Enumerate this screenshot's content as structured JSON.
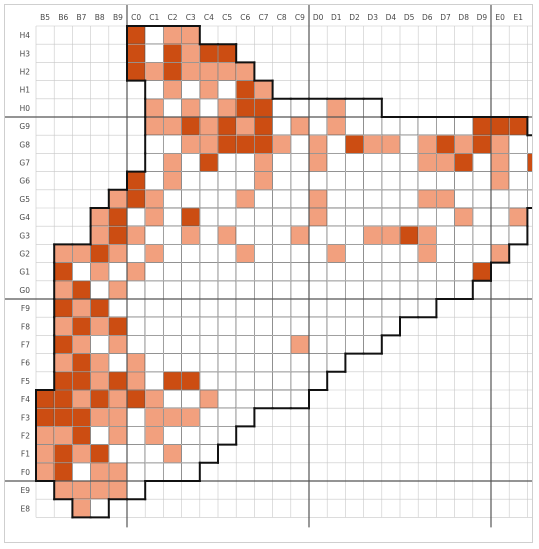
{
  "columns": [
    "B5",
    "B6",
    "B7",
    "B8",
    "B9",
    "C0",
    "C1",
    "C2",
    "C3",
    "C4",
    "C5",
    "C6",
    "C7",
    "C8",
    "C9",
    "D0",
    "D1",
    "D2",
    "D3",
    "D4",
    "D5",
    "D6",
    "D7",
    "D8",
    "D9",
    "E0",
    "E1",
    "E2"
  ],
  "rows": [
    "H4",
    "H3",
    "H2",
    "H1",
    "H0",
    "G9",
    "G8",
    "G7",
    "G6",
    "G5",
    "G4",
    "G3",
    "G2",
    "G1",
    "G0",
    "F9",
    "F8",
    "F7",
    "F6",
    "F5",
    "F4",
    "F3",
    "F2",
    "F1",
    "F0",
    "E9",
    "E8"
  ],
  "colors": {
    "high": "#cc4d12",
    "medium": "#f2a07e",
    "empty": "#ffffff",
    "grid": "#c8c8c8",
    "major_line": "#555555",
    "boundary": "#111111"
  },
  "legend_levels": [
    "high",
    "medium",
    "empty"
  ],
  "cells": {
    "H4": [
      null,
      null,
      null,
      null,
      null,
      2,
      0,
      1,
      1,
      null,
      null,
      null,
      null,
      null,
      null,
      null,
      null,
      null,
      null,
      null,
      null,
      null,
      null,
      null,
      null,
      null,
      null,
      null
    ],
    "H3": [
      null,
      null,
      null,
      null,
      null,
      2,
      0,
      2,
      1,
      2,
      2,
      null,
      null,
      null,
      null,
      null,
      null,
      null,
      null,
      null,
      null,
      null,
      null,
      null,
      null,
      null,
      null,
      null
    ],
    "H2": [
      null,
      null,
      null,
      null,
      null,
      2,
      1,
      2,
      1,
      1,
      1,
      1,
      null,
      null,
      null,
      null,
      null,
      null,
      null,
      null,
      null,
      null,
      null,
      null,
      null,
      null,
      null,
      null
    ],
    "H1": [
      null,
      null,
      null,
      null,
      null,
      null,
      0,
      1,
      0,
      1,
      0,
      2,
      1,
      null,
      null,
      null,
      null,
      null,
      null,
      null,
      null,
      null,
      null,
      null,
      null,
      null,
      null,
      null
    ],
    "H0": [
      null,
      null,
      null,
      null,
      null,
      null,
      1,
      0,
      1,
      0,
      1,
      2,
      2,
      0,
      0,
      0,
      1,
      0,
      0,
      null,
      null,
      null,
      null,
      null,
      null,
      null,
      null,
      null
    ],
    "G9": [
      null,
      null,
      null,
      null,
      null,
      null,
      1,
      1,
      2,
      1,
      2,
      1,
      2,
      0,
      1,
      0,
      1,
      0,
      0,
      0,
      0,
      0,
      0,
      0,
      2,
      2,
      2,
      null
    ],
    "G8": [
      null,
      null,
      null,
      null,
      null,
      null,
      0,
      0,
      1,
      1,
      2,
      2,
      2,
      1,
      0,
      1,
      0,
      2,
      1,
      1,
      0,
      1,
      2,
      1,
      2,
      1,
      0,
      0
    ],
    "G7": [
      null,
      null,
      null,
      null,
      null,
      null,
      0,
      1,
      0,
      2,
      0,
      0,
      1,
      0,
      0,
      1,
      0,
      0,
      0,
      0,
      0,
      1,
      1,
      2,
      0,
      1,
      0,
      2
    ],
    "G6": [
      null,
      null,
      null,
      null,
      null,
      2,
      0,
      1,
      0,
      0,
      0,
      0,
      1,
      0,
      0,
      0,
      0,
      0,
      0,
      0,
      0,
      0,
      0,
      0,
      0,
      1,
      0,
      0
    ],
    "G5": [
      null,
      null,
      null,
      null,
      1,
      2,
      1,
      0,
      0,
      0,
      0,
      1,
      0,
      0,
      0,
      1,
      0,
      0,
      0,
      0,
      0,
      1,
      1,
      0,
      0,
      0,
      0,
      0
    ],
    "G4": [
      null,
      null,
      null,
      1,
      2,
      0,
      1,
      0,
      2,
      0,
      0,
      0,
      0,
      0,
      0,
      1,
      0,
      0,
      0,
      0,
      0,
      0,
      0,
      1,
      0,
      0,
      1,
      null
    ],
    "G3": [
      null,
      null,
      null,
      1,
      2,
      1,
      0,
      0,
      1,
      0,
      1,
      0,
      0,
      0,
      1,
      0,
      0,
      0,
      1,
      1,
      2,
      1,
      0,
      0,
      0,
      0,
      0,
      null
    ],
    "G2": [
      null,
      1,
      1,
      2,
      1,
      0,
      1,
      0,
      0,
      0,
      0,
      1,
      0,
      0,
      0,
      0,
      1,
      0,
      0,
      0,
      0,
      1,
      0,
      0,
      0,
      1,
      null,
      null
    ],
    "G1": [
      null,
      2,
      0,
      1,
      0,
      1,
      0,
      0,
      0,
      0,
      0,
      0,
      0,
      0,
      0,
      0,
      0,
      0,
      0,
      0,
      0,
      0,
      0,
      0,
      2,
      null,
      null,
      null
    ],
    "G0": [
      null,
      1,
      2,
      0,
      1,
      0,
      0,
      0,
      0,
      0,
      0,
      0,
      0,
      0,
      0,
      0,
      0,
      0,
      0,
      0,
      0,
      0,
      0,
      0,
      null,
      null,
      null,
      null
    ],
    "F9": [
      null,
      2,
      1,
      2,
      0,
      0,
      0,
      0,
      0,
      0,
      0,
      0,
      0,
      0,
      0,
      0,
      0,
      0,
      0,
      0,
      0,
      0,
      null,
      null,
      null,
      null,
      null,
      null
    ],
    "F8": [
      null,
      1,
      2,
      1,
      2,
      0,
      0,
      0,
      0,
      0,
      0,
      0,
      0,
      0,
      0,
      0,
      0,
      0,
      0,
      0,
      null,
      null,
      null,
      null,
      null,
      null,
      null,
      null
    ],
    "F7": [
      null,
      2,
      1,
      0,
      1,
      0,
      0,
      0,
      0,
      0,
      0,
      0,
      0,
      0,
      1,
      0,
      0,
      0,
      0,
      null,
      null,
      null,
      null,
      null,
      null,
      null,
      null,
      null
    ],
    "F6": [
      null,
      1,
      2,
      1,
      0,
      1,
      0,
      0,
      0,
      0,
      0,
      0,
      0,
      0,
      0,
      0,
      0,
      null,
      null,
      null,
      null,
      null,
      null,
      null,
      null,
      null,
      null,
      null
    ],
    "F5": [
      null,
      2,
      2,
      1,
      2,
      1,
      0,
      2,
      2,
      0,
      0,
      0,
      0,
      0,
      0,
      0,
      null,
      null,
      null,
      null,
      null,
      null,
      null,
      null,
      null,
      null,
      null,
      null
    ],
    "F4": [
      2,
      2,
      1,
      2,
      1,
      2,
      1,
      0,
      0,
      1,
      0,
      0,
      0,
      0,
      0,
      null,
      null,
      null,
      null,
      null,
      null,
      null,
      null,
      null,
      null,
      null,
      null,
      null
    ],
    "F3": [
      2,
      2,
      2,
      1,
      1,
      0,
      1,
      1,
      1,
      0,
      0,
      0,
      null,
      null,
      null,
      null,
      null,
      null,
      null,
      null,
      null,
      null,
      null,
      null,
      null,
      null,
      null,
      null
    ],
    "F2": [
      1,
      1,
      2,
      0,
      1,
      0,
      1,
      0,
      0,
      0,
      0,
      null,
      null,
      null,
      null,
      null,
      null,
      null,
      null,
      null,
      null,
      null,
      null,
      null,
      null,
      null,
      null,
      null
    ],
    "F1": [
      1,
      2,
      1,
      2,
      0,
      0,
      0,
      1,
      0,
      0,
      null,
      null,
      null,
      null,
      null,
      null,
      null,
      null,
      null,
      null,
      null,
      null,
      null,
      null,
      null,
      null,
      null,
      null
    ],
    "F0": [
      1,
      2,
      0,
      1,
      1,
      0,
      0,
      0,
      0,
      null,
      null,
      null,
      null,
      null,
      null,
      null,
      null,
      null,
      null,
      null,
      null,
      null,
      null,
      null,
      null,
      null,
      null,
      null
    ],
    "E9": [
      null,
      1,
      1,
      1,
      1,
      0,
      null,
      null,
      null,
      null,
      null,
      null,
      null,
      null,
      null,
      null,
      null,
      null,
      null,
      null,
      null,
      null,
      null,
      null,
      null,
      null,
      null,
      null
    ],
    "E8": [
      null,
      null,
      1,
      0,
      null,
      null,
      null,
      null,
      null,
      null,
      null,
      null,
      null,
      null,
      null,
      null,
      null,
      null,
      null,
      null,
      null,
      null,
      null,
      null,
      null,
      null,
      null,
      null
    ]
  }
}
